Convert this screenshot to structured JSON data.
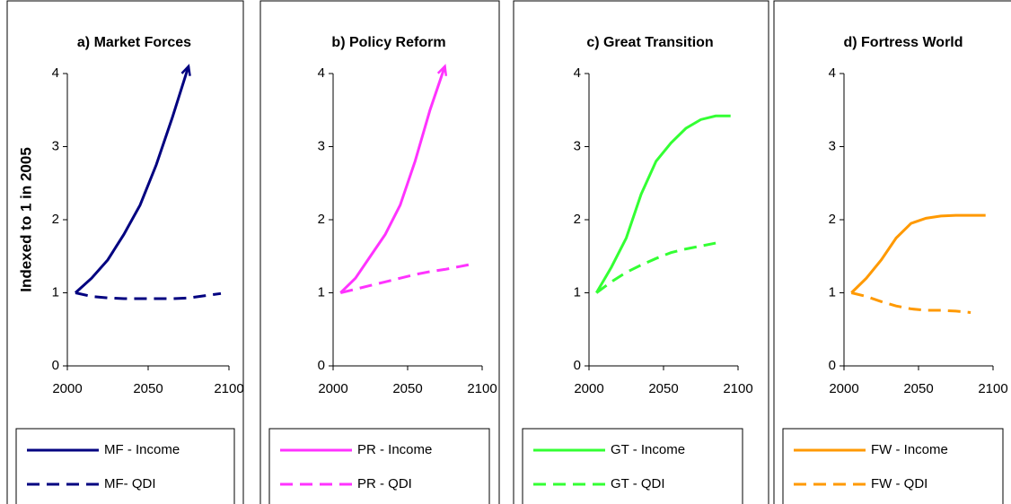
{
  "chart_data": [
    {
      "type": "line",
      "title": "a) Market Forces",
      "y_label": "Indexed to 1 in 2005",
      "x": [
        2005,
        2015,
        2025,
        2035,
        2045,
        2055,
        2065,
        2075,
        2085,
        2095
      ],
      "xlim": [
        2000,
        2100
      ],
      "xticks": [
        2000,
        2050,
        2100
      ],
      "ylim": [
        0,
        4
      ],
      "yticks": [
        0,
        1,
        2,
        3,
        4
      ],
      "series": [
        {
          "name": "MF - Income",
          "color": "#000080",
          "line_style": "solid",
          "arrow_end": true,
          "values": [
            1,
            1.2,
            1.45,
            1.8,
            2.2,
            2.75,
            3.4,
            4.1,
            null,
            null
          ]
        },
        {
          "name": "MF- QDI",
          "color": "#000080",
          "line_style": "dashed",
          "values": [
            1,
            0.95,
            0.93,
            0.92,
            0.92,
            0.92,
            0.92,
            0.93,
            0.96,
            0.99
          ]
        }
      ]
    },
    {
      "type": "line",
      "title": "b) Policy Reform",
      "x": [
        2005,
        2015,
        2025,
        2035,
        2045,
        2055,
        2065,
        2075,
        2085,
        2095
      ],
      "xlim": [
        2000,
        2100
      ],
      "xticks": [
        2000,
        2050,
        2100
      ],
      "ylim": [
        0,
        4
      ],
      "yticks": [
        0,
        1,
        2,
        3,
        4
      ],
      "series": [
        {
          "name": "PR - Income",
          "color": "#ff33ff",
          "line_style": "solid",
          "arrow_end": true,
          "values": [
            1,
            1.2,
            1.5,
            1.8,
            2.2,
            2.8,
            3.5,
            4.1,
            null,
            null
          ]
        },
        {
          "name": "PR - QDI",
          "color": "#ff33ff",
          "line_style": "dashed",
          "values": [
            1,
            1.05,
            1.1,
            1.15,
            1.2,
            1.25,
            1.29,
            1.32,
            1.36,
            1.4
          ]
        }
      ]
    },
    {
      "type": "line",
      "title": "c) Great Transition",
      "x": [
        2005,
        2015,
        2025,
        2035,
        2045,
        2055,
        2065,
        2075,
        2085,
        2095
      ],
      "xlim": [
        2000,
        2100
      ],
      "xticks": [
        2000,
        2050,
        2100
      ],
      "ylim": [
        0,
        4
      ],
      "yticks": [
        0,
        1,
        2,
        3,
        4
      ],
      "series": [
        {
          "name": "GT - Income",
          "color": "#33ff33",
          "line_style": "solid",
          "values": [
            1,
            1.35,
            1.75,
            2.35,
            2.8,
            3.05,
            3.25,
            3.37,
            3.42,
            3.42
          ]
        },
        {
          "name": "GT - QDI",
          "color": "#33ff33",
          "line_style": "dashed",
          "values": [
            1,
            1.15,
            1.28,
            1.38,
            1.47,
            1.55,
            1.6,
            1.64,
            1.68,
            null
          ]
        }
      ]
    },
    {
      "type": "line",
      "title": "d) Fortress World",
      "x": [
        2005,
        2015,
        2025,
        2035,
        2045,
        2055,
        2065,
        2075,
        2085,
        2095
      ],
      "xlim": [
        2000,
        2100
      ],
      "xticks": [
        2000,
        2050,
        2100
      ],
      "ylim": [
        0,
        4
      ],
      "yticks": [
        0,
        1,
        2,
        3,
        4
      ],
      "series": [
        {
          "name": "FW - Income",
          "color": "#ff9900",
          "line_style": "solid",
          "values": [
            1,
            1.2,
            1.45,
            1.75,
            1.95,
            2.02,
            2.05,
            2.06,
            2.06,
            2.06
          ]
        },
        {
          "name": "FW - QDI",
          "color": "#ff9900",
          "line_style": "dashed",
          "values": [
            1,
            0.95,
            0.88,
            0.82,
            0.78,
            0.76,
            0.76,
            0.75,
            0.73,
            null
          ]
        }
      ]
    }
  ]
}
